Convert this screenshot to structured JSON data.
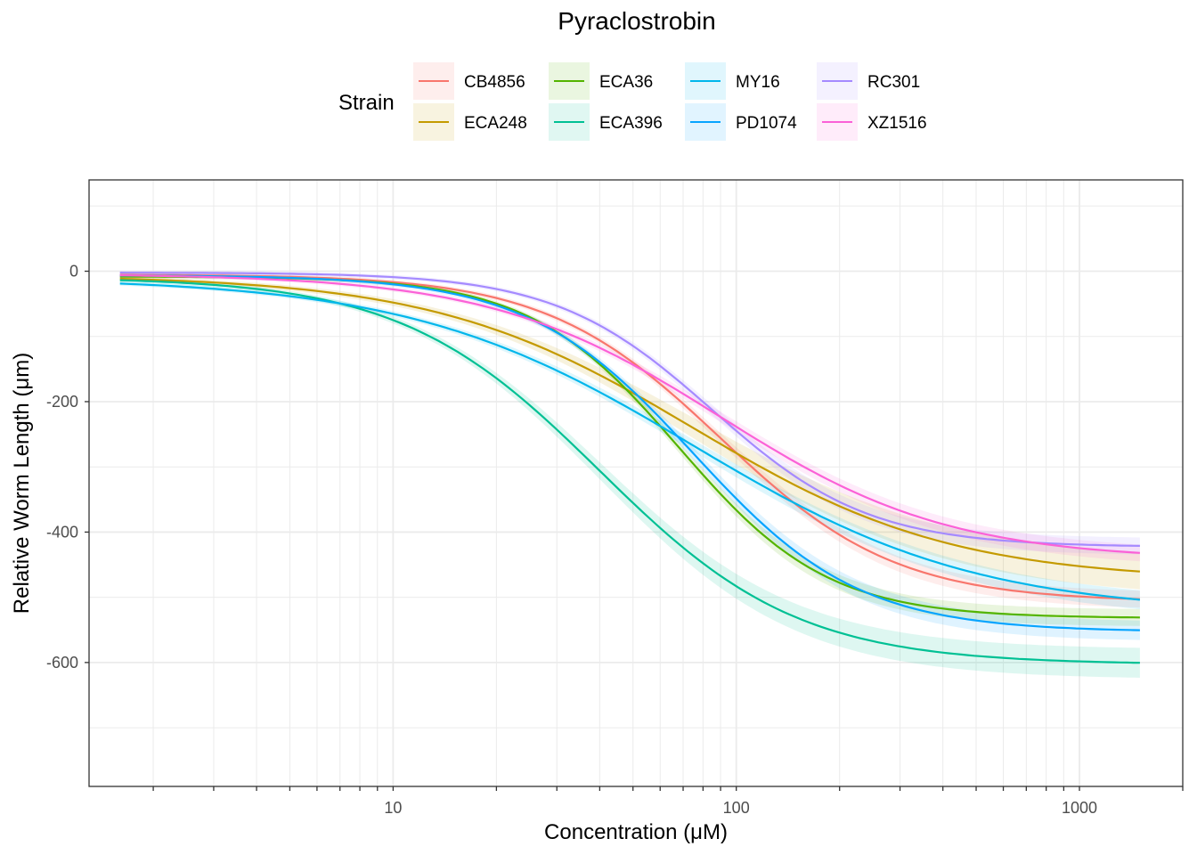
{
  "chart_data": {
    "type": "line",
    "title": "Pyraclostrobin",
    "xlabel": "Concentration (μM)",
    "ylabel": "Relative Worm Length (μm)",
    "x_scale": "log10",
    "xlim": [
      1.3,
      2000
    ],
    "ylim": [
      -790,
      140
    ],
    "x_ticks": [
      10,
      100,
      1000
    ],
    "x_tick_labels": [
      "10",
      "100",
      "1000"
    ],
    "y_ticks": [
      0,
      -200,
      -400,
      -600
    ],
    "y_tick_labels": [
      "0",
      "-200",
      "-400",
      "-600"
    ],
    "x_range": [
      1.6,
      1500
    ],
    "legend": {
      "title": "Strain",
      "position": "top"
    },
    "series": [
      {
        "name": "CB4856",
        "color": "#F8766D",
        "top": -5,
        "bottom": -507,
        "ec50": 90,
        "hill": 1.7,
        "band": 10
      },
      {
        "name": "ECA248",
        "color": "#C49A00",
        "top": -6,
        "bottom": -475,
        "ec50": 75,
        "hill": 1.15,
        "band": 25
      },
      {
        "name": "ECA36",
        "color": "#53B400",
        "top": -8,
        "bottom": -532,
        "ec50": 68,
        "hill": 2.0,
        "band": 10
      },
      {
        "name": "ECA396",
        "color": "#00C094",
        "top": -9,
        "bottom": -603,
        "ec50": 40,
        "hill": 1.5,
        "band": 20
      },
      {
        "name": "MY16",
        "color": "#00B6EB",
        "top": -10,
        "bottom": -525,
        "ec50": 75,
        "hill": 1.05,
        "band": 12
      },
      {
        "name": "PD1074",
        "color": "#06A4FF",
        "top": -6,
        "bottom": -553,
        "ec50": 75,
        "hill": 1.8,
        "band": 12
      },
      {
        "name": "RC301",
        "color": "#A58AFF",
        "top": -2,
        "bottom": -423,
        "ec50": 85,
        "hill": 1.9,
        "band": 10
      },
      {
        "name": "XZ1516",
        "color": "#FB61D7",
        "top": -4,
        "bottom": -443,
        "ec50": 90,
        "hill": 1.3,
        "band": 10
      }
    ]
  }
}
